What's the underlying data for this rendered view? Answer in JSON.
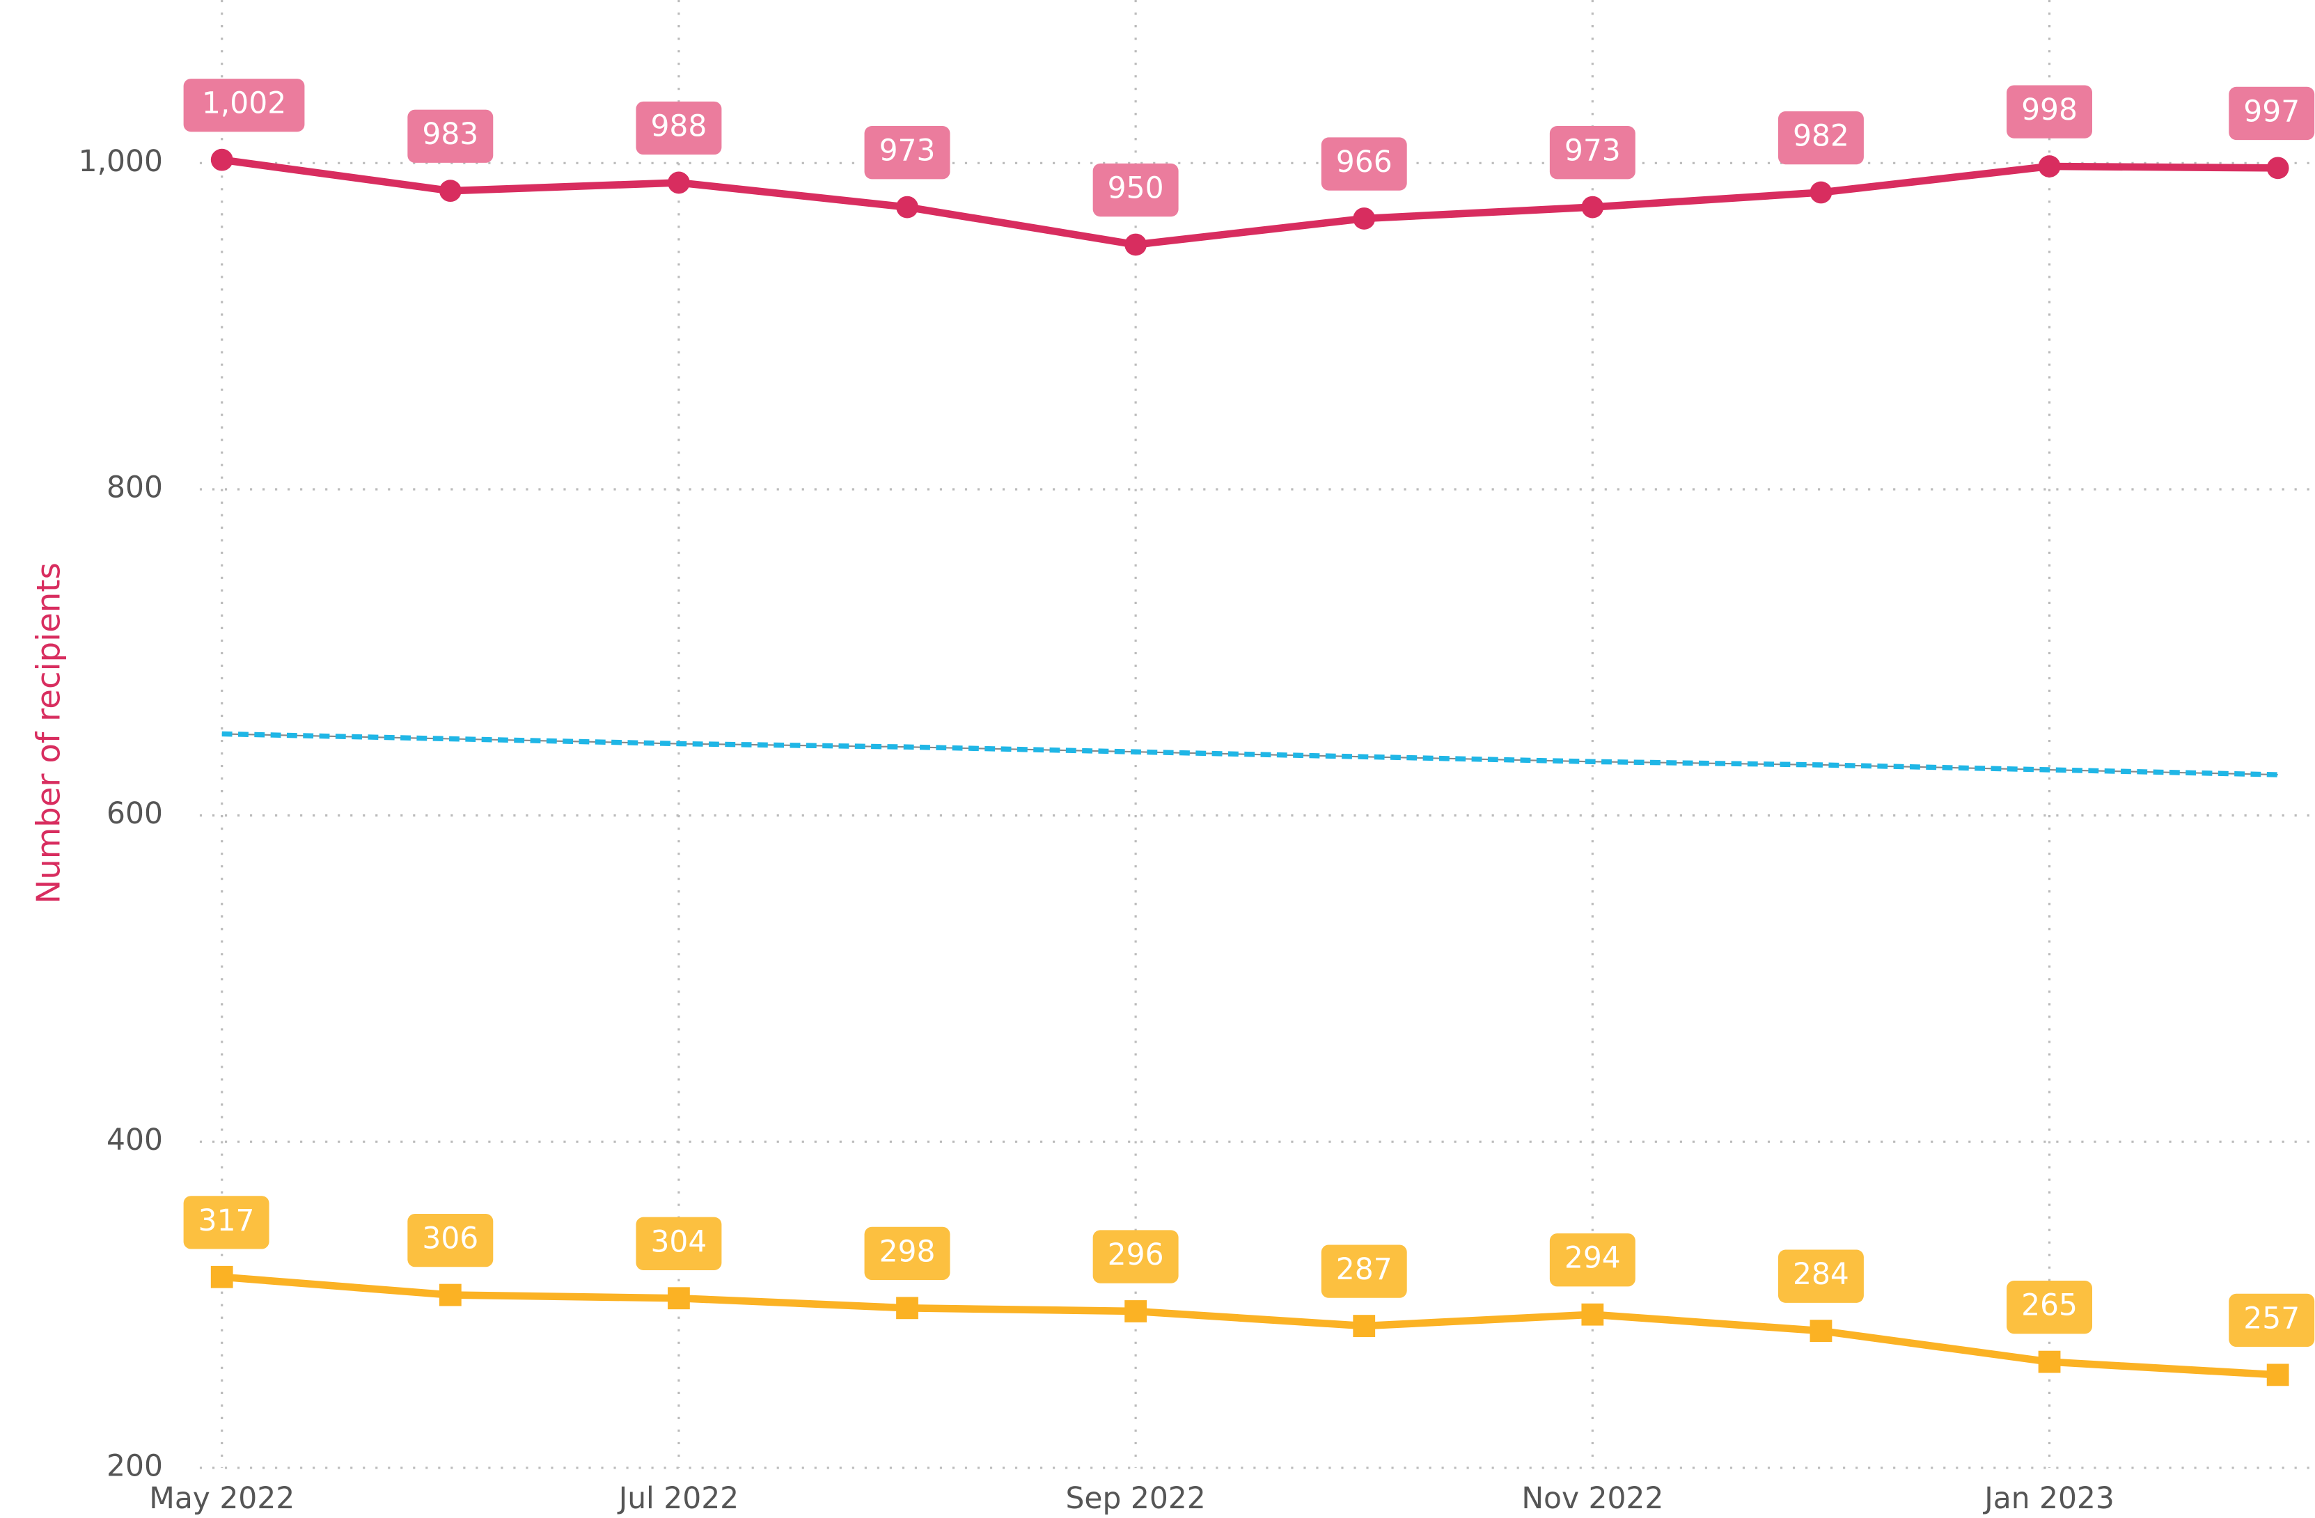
{
  "chart_data": {
    "type": "line",
    "y_label": "Number of recipients",
    "categories": [
      "May 2022",
      null,
      "Jul 2022",
      null,
      "Sep 2022",
      null,
      "Nov 2022",
      null,
      "Jan 2023",
      null
    ],
    "series": [
      {
        "color": "#d82d5f",
        "label_color": "#eb7c9d",
        "marker": "circle",
        "values": [
          1002,
          983,
          988,
          973,
          950,
          966,
          973,
          982,
          998,
          997
        ],
        "value_labels": [
          "1,002",
          "983",
          "988",
          "973",
          "950",
          "966",
          "973",
          "982",
          "998",
          "997"
        ]
      },
      {
        "color": "#fbb224",
        "label_color": "#fcc040",
        "marker": "square",
        "values": [
          317,
          306,
          304,
          298,
          296,
          287,
          294,
          284,
          265,
          257
        ],
        "value_labels": [
          "317",
          "306",
          "304",
          "298",
          "296",
          "287",
          "294",
          "284",
          "265",
          "257"
        ]
      },
      {
        "color": "#1fb6e6",
        "dashed": true,
        "values": [
          650,
          647,
          644,
          642,
          639,
          636,
          633,
          631,
          628,
          625
        ]
      }
    ],
    "ylim": [
      200,
      1100
    ],
    "yticks": [
      200,
      400,
      600,
      800,
      {
        "value": 1000,
        "label": "1,000"
      }
    ],
    "grid": true
  }
}
